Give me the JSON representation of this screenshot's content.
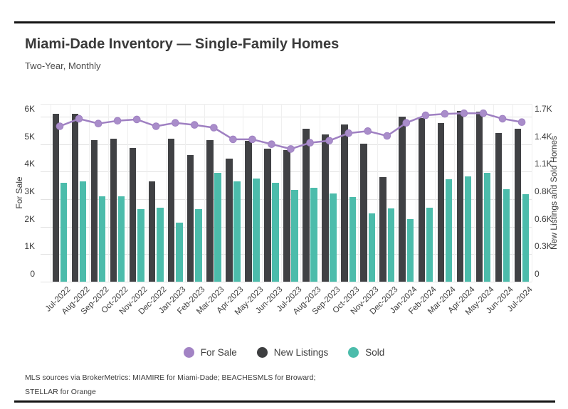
{
  "page": {
    "title": "Miami-Dade Inventory — Single-Family Homes",
    "subtitle": "Two-Year, Monthly"
  },
  "footer": {
    "line1": "MLS sources via BrokerMetrics: MIAMIRE for Miami-Dade; BEACHESMLS for Broward;",
    "line2": "STELLAR for Orange"
  },
  "legend": {
    "items": [
      {
        "label": "For Sale",
        "color": "#a283c4"
      },
      {
        "label": "New Listings",
        "color": "#3d3e40"
      },
      {
        "label": "Sold",
        "color": "#4cbcab"
      }
    ]
  },
  "colors": {
    "rule": "#141414",
    "title_text": "#3a3a3a",
    "axis_text": "#3d3d3d",
    "gridline": "#e2e2e2",
    "vertical_gridline": "#efefef",
    "for_sale_line": "#9f80c2",
    "for_sale_dot": "#a98dca",
    "new_listings_bar": "#404144",
    "sold_bar": "#4cbcab"
  },
  "chart_data": {
    "type": "combo",
    "subtypes": [
      "line",
      "bar",
      "bar"
    ],
    "categories": [
      "Jul-2022",
      "Aug-2022",
      "Sep-2022",
      "Oct-2022",
      "Nov-2022",
      "Dec-2022",
      "Jan-2023",
      "Feb-2023",
      "Mar-2023",
      "Apr-2023",
      "May-2023",
      "Jun-2023",
      "Jul-2023",
      "Aug-2023",
      "Sep-2023",
      "Oct-2023",
      "Nov-2023",
      "Dec-2023",
      "Jan-2024",
      "Feb-2024",
      "Mar-2024",
      "Apr-2024",
      "May-2024",
      "Jun-2024",
      "Jul-2024"
    ],
    "left_axis": {
      "title": "For Sale",
      "tick_labels": [
        "0",
        "1K",
        "2K",
        "3K",
        "4K",
        "5K",
        "6K"
      ],
      "tick_values": [
        0,
        1000,
        2000,
        3000,
        4000,
        5000,
        6000
      ],
      "max": 6000
    },
    "right_axis": {
      "title": "New Listings and Sold Homes",
      "tick_labels": [
        "0",
        "0.3K",
        "0.6K",
        "0.8K",
        "1.1K",
        "1.4K",
        "1.7K"
      ],
      "tick_values": [
        0,
        283,
        567,
        850,
        1133,
        1417,
        1700
      ],
      "max": 1700
    },
    "grid": "horizontal-and-vertical",
    "legend_position": "bottom-center",
    "series": [
      {
        "name": "For Sale",
        "type": "line",
        "axis": "left",
        "color": "#9f80c2",
        "dot_color": "#a98dca",
        "values": [
          5650,
          5925,
          5750,
          5850,
          5900,
          5650,
          5775,
          5700,
          5600,
          5175,
          5175,
          5000,
          4825,
          5050,
          5125,
          5400,
          5475,
          5300,
          5775,
          6050,
          6100,
          6125,
          6125,
          5925,
          5800
        ]
      },
      {
        "name": "New Listings",
        "type": "bar",
        "axis": "right",
        "color": "#404144",
        "values": [
          1730,
          1730,
          1460,
          1475,
          1380,
          1030,
          1470,
          1305,
          1455,
          1270,
          1450,
          1370,
          1355,
          1575,
          1520,
          1620,
          1425,
          1080,
          1700,
          1685,
          1635,
          1760,
          1750,
          1530,
          1575
        ]
      },
      {
        "name": "Sold",
        "type": "bar",
        "axis": "right",
        "color": "#4cbcab",
        "values": [
          1020,
          1035,
          880,
          880,
          745,
          760,
          605,
          745,
          1125,
          1030,
          1060,
          1020,
          945,
          965,
          910,
          875,
          705,
          755,
          645,
          765,
          1055,
          1085,
          1120,
          950,
          905
        ]
      }
    ]
  }
}
